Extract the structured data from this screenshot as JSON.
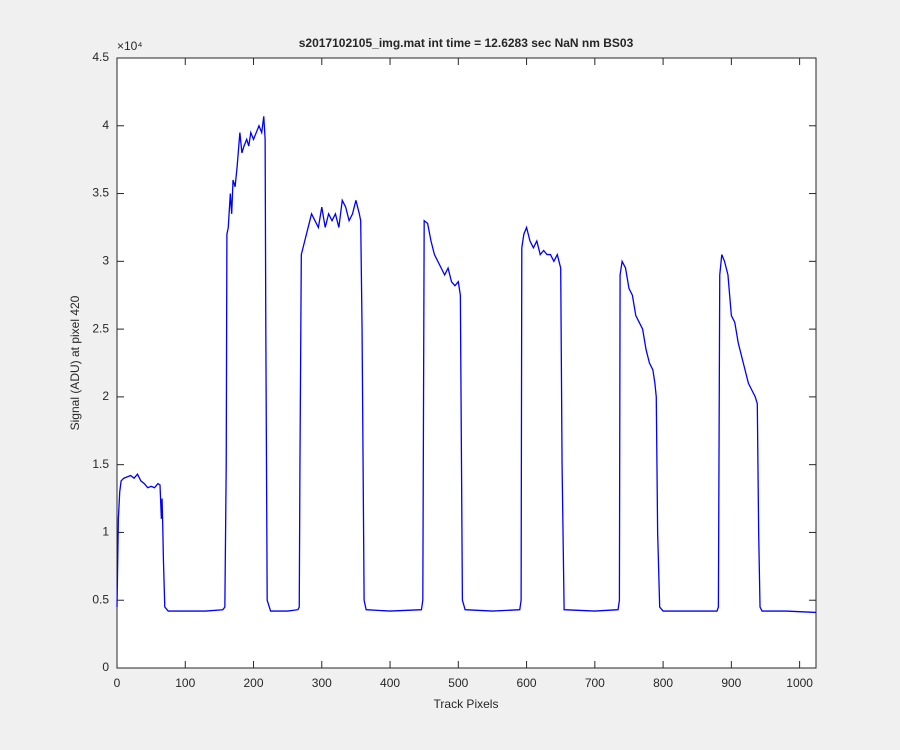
{
  "chart_data": {
    "type": "line",
    "title": "s2017102105_img.mat int time = 12.6283 sec  NaN nm BS03",
    "x_label": "Track Pixels",
    "y_label": "Signal (ADU) at pixel 420",
    "y_exponent": "×10⁴",
    "xlim": [
      0,
      1024
    ],
    "xticks": [
      0,
      100,
      200,
      300,
      400,
      500,
      600,
      700,
      800,
      900,
      1000
    ],
    "ylim": [
      0,
      4.5
    ],
    "yticks": [
      0,
      0.5,
      1,
      1.5,
      2,
      2.5,
      3,
      3.5,
      4,
      4.5
    ],
    "grid": false,
    "x": [
      0,
      2,
      4,
      6,
      10,
      15,
      20,
      25,
      30,
      35,
      40,
      45,
      50,
      55,
      60,
      63,
      65,
      66,
      67,
      68,
      70,
      75,
      100,
      130,
      155,
      158,
      160,
      161,
      163,
      166,
      168,
      170,
      173,
      176,
      180,
      183,
      186,
      190,
      193,
      196,
      200,
      204,
      208,
      212,
      215,
      217,
      218,
      220,
      225,
      250,
      265,
      267,
      268,
      270,
      275,
      280,
      285,
      290,
      295,
      300,
      305,
      310,
      315,
      320,
      325,
      330,
      335,
      340,
      345,
      350,
      355,
      357,
      359,
      362,
      365,
      400,
      446,
      448,
      450,
      455,
      460,
      465,
      470,
      475,
      480,
      485,
      490,
      495,
      500,
      503,
      504,
      506,
      510,
      550,
      590,
      592,
      593,
      596,
      600,
      605,
      610,
      615,
      620,
      625,
      630,
      635,
      640,
      645,
      650,
      652,
      655,
      700,
      734,
      736,
      737,
      740,
      745,
      750,
      755,
      760,
      765,
      770,
      775,
      780,
      785,
      788,
      790,
      792,
      795,
      800,
      850,
      879,
      881,
      883,
      886,
      890,
      895,
      900,
      905,
      910,
      915,
      920,
      925,
      930,
      935,
      938,
      940,
      942,
      945,
      980,
      1024
    ],
    "series": [
      {
        "color": "#0000ff",
        "values": [
          0.45,
          1.1,
          1.3,
          1.38,
          1.4,
          1.41,
          1.42,
          1.4,
          1.43,
          1.38,
          1.36,
          1.33,
          1.34,
          1.33,
          1.36,
          1.35,
          1.1,
          1.25,
          1.05,
          0.8,
          0.45,
          0.42,
          0.42,
          0.42,
          0.43,
          0.45,
          1.5,
          3.2,
          3.25,
          3.5,
          3.35,
          3.6,
          3.55,
          3.7,
          3.95,
          3.8,
          3.85,
          3.9,
          3.85,
          3.95,
          3.9,
          3.95,
          4.0,
          3.95,
          4.07,
          3.9,
          2.5,
          0.5,
          0.42,
          0.42,
          0.43,
          0.45,
          1.5,
          3.05,
          3.15,
          3.25,
          3.35,
          3.3,
          3.25,
          3.4,
          3.25,
          3.35,
          3.3,
          3.35,
          3.25,
          3.45,
          3.4,
          3.3,
          3.35,
          3.45,
          3.35,
          3.3,
          2.5,
          0.5,
          0.43,
          0.42,
          0.43,
          0.5,
          3.3,
          3.28,
          3.15,
          3.05,
          3.0,
          2.95,
          2.9,
          2.95,
          2.85,
          2.82,
          2.85,
          2.75,
          2.0,
          0.5,
          0.43,
          0.42,
          0.43,
          0.5,
          3.1,
          3.2,
          3.25,
          3.15,
          3.1,
          3.15,
          3.05,
          3.08,
          3.05,
          3.05,
          3.0,
          3.05,
          2.95,
          1.5,
          0.43,
          0.42,
          0.43,
          0.5,
          2.9,
          3.0,
          2.95,
          2.8,
          2.75,
          2.6,
          2.55,
          2.5,
          2.35,
          2.25,
          2.2,
          2.1,
          2.0,
          1.0,
          0.45,
          0.42,
          0.42,
          0.42,
          0.45,
          2.9,
          3.05,
          3.0,
          2.9,
          2.6,
          2.55,
          2.4,
          2.3,
          2.2,
          2.1,
          2.05,
          2.0,
          1.95,
          1.0,
          0.45,
          0.42,
          0.42,
          0.41
        ]
      }
    ]
  }
}
